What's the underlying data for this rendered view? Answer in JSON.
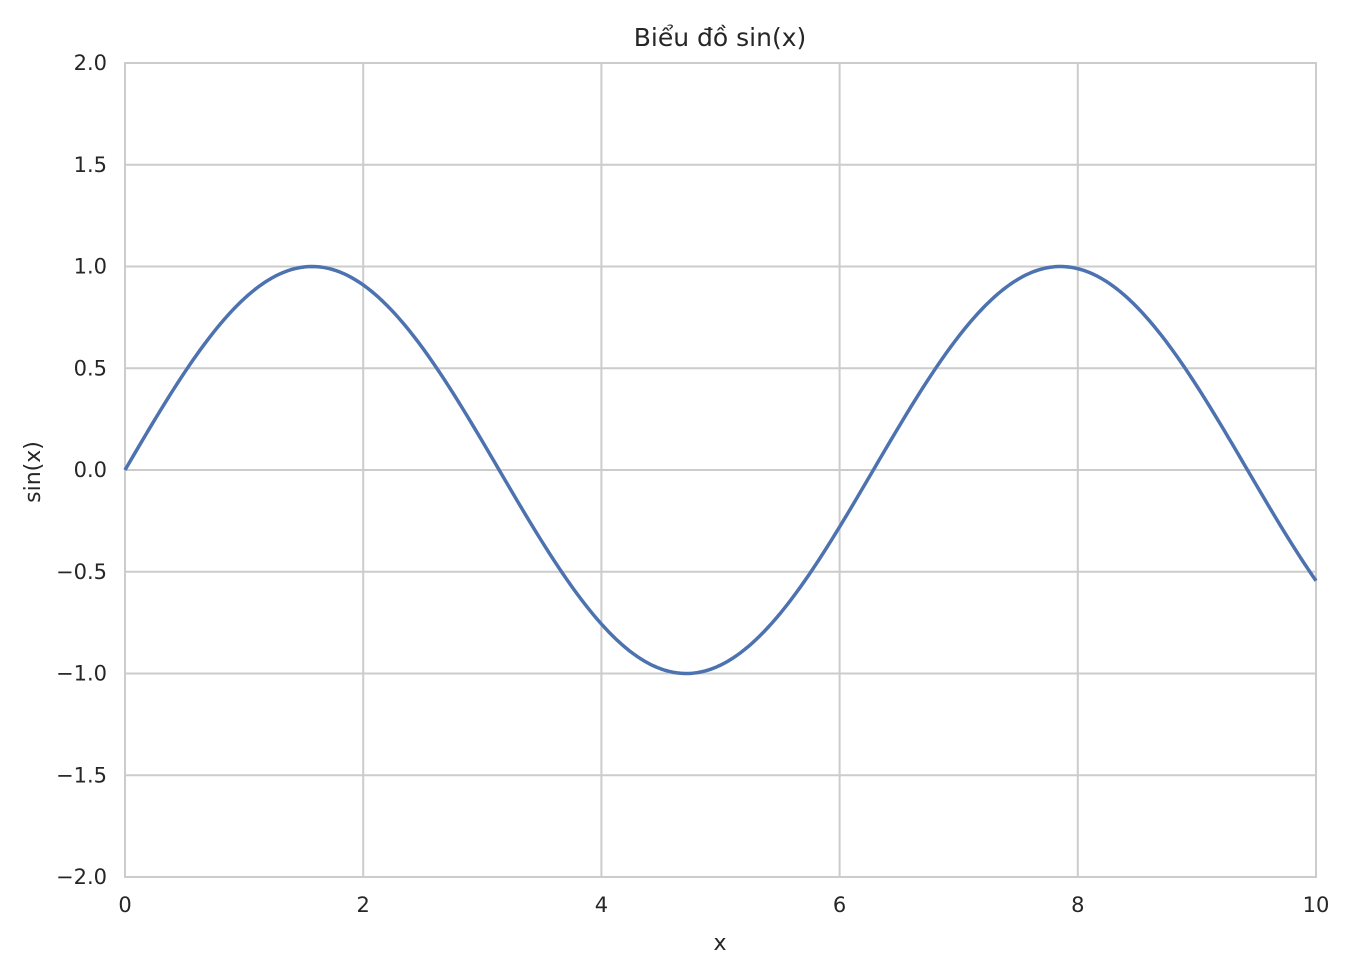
{
  "chart_data": {
    "type": "line",
    "title": "Biểu đồ sin(x)",
    "xlabel": "x",
    "ylabel": "sin(x)",
    "xlim": [
      0,
      10
    ],
    "ylim": [
      -2,
      2
    ],
    "x_ticks": [
      0,
      2,
      4,
      6,
      8,
      10
    ],
    "x_tick_labels": [
      "0",
      "2",
      "4",
      "6",
      "8",
      "10"
    ],
    "y_ticks": [
      -2.0,
      -1.5,
      -1.0,
      -0.5,
      0.0,
      0.5,
      1.0,
      1.5,
      2.0
    ],
    "y_tick_labels": [
      "−2.0",
      "−1.5",
      "−1.0",
      "−0.5",
      "0.0",
      "0.5",
      "1.0",
      "1.5",
      "2.0"
    ],
    "grid": true,
    "series": [
      {
        "color": "#4c72b0",
        "x": [
          0,
          0.5,
          1,
          1.5,
          1.5708,
          2,
          2.5,
          3,
          3.1416,
          3.5,
          4,
          4.5,
          4.7124,
          5,
          5.5,
          6,
          6.2832,
          6.5,
          7,
          7.5,
          7.854,
          8,
          8.5,
          9,
          9.4248,
          9.5,
          10
        ],
        "y": [
          0.0,
          0.479,
          0.841,
          0.997,
          1.0,
          0.909,
          0.598,
          0.141,
          0.0,
          -0.351,
          -0.757,
          -0.978,
          -1.0,
          -0.959,
          -0.706,
          -0.279,
          0.0,
          0.215,
          0.657,
          0.938,
          1.0,
          0.989,
          0.798,
          0.412,
          0.0,
          -0.075,
          -0.544
        ]
      }
    ]
  },
  "colors": {
    "grid": "#cccccc",
    "text": "#262626",
    "background": "#ffffff",
    "line": "#4c72b0"
  }
}
